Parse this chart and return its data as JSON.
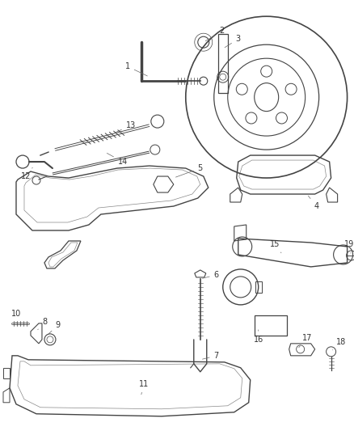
{
  "background_color": "#ffffff",
  "line_color": "#444444",
  "label_color": "#333333",
  "figsize": [
    4.38,
    5.33
  ],
  "dpi": 100
}
